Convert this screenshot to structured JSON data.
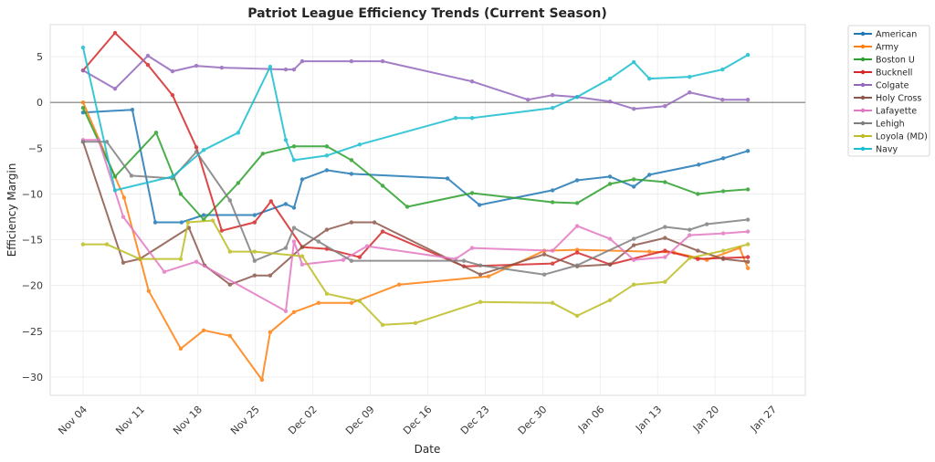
{
  "chart_data": {
    "type": "line",
    "title": "Patriot League Efficiency Trends (Current Season)",
    "xlabel": "Date",
    "ylabel": "Efficiency Margin",
    "x_unit": "days since Nov 04",
    "xlim": [
      -4,
      88
    ],
    "ylim": [
      -32,
      8.5
    ],
    "xticks": [
      {
        "day": 0,
        "label": "Nov 04"
      },
      {
        "day": 7,
        "label": "Nov 11"
      },
      {
        "day": 14,
        "label": "Nov 18"
      },
      {
        "day": 21,
        "label": "Nov 25"
      },
      {
        "day": 28,
        "label": "Dec 02"
      },
      {
        "day": 35,
        "label": "Dec 09"
      },
      {
        "day": 42,
        "label": "Dec 16"
      },
      {
        "day": 49,
        "label": "Dec 23"
      },
      {
        "day": 56,
        "label": "Dec 30"
      },
      {
        "day": 63,
        "label": "Jan 06"
      },
      {
        "day": 70,
        "label": "Jan 13"
      },
      {
        "day": 77,
        "label": "Jan 20"
      },
      {
        "day": 84,
        "label": "Jan 27"
      }
    ],
    "yticks": [
      5,
      0,
      -5,
      -10,
      -15,
      -20,
      -25,
      -30
    ],
    "ytick_labels": [
      "5",
      "0",
      "−5",
      "−10",
      "−15",
      "−20",
      "−25",
      "−30"
    ],
    "reference_line": 0,
    "grid": true,
    "legend_position": "outside-top-right",
    "series": [
      {
        "name": "American",
        "color": "#1f77b4",
        "points": [
          [
            0,
            -1.1
          ],
          [
            6,
            -0.8
          ],
          [
            8.8,
            -13.1
          ],
          [
            12,
            -13.1
          ],
          [
            14.7,
            -12.3
          ],
          [
            20.9,
            -12.3
          ],
          [
            24.7,
            -11.1
          ],
          [
            25.7,
            -11.5
          ],
          [
            26.7,
            -8.4
          ],
          [
            29.7,
            -7.4
          ],
          [
            32.7,
            -7.8
          ],
          [
            44.4,
            -8.3
          ],
          [
            48.3,
            -11.2
          ],
          [
            57.2,
            -9.6
          ],
          [
            60.2,
            -8.5
          ],
          [
            64.2,
            -8.1
          ],
          [
            67.1,
            -9.2
          ],
          [
            69,
            -7.9
          ],
          [
            75,
            -6.8
          ],
          [
            78,
            -6.1
          ],
          [
            81,
            -5.3
          ]
        ]
      },
      {
        "name": "Army",
        "color": "#ff7f0e",
        "points": [
          [
            0,
            0
          ],
          [
            5,
            -10.4
          ],
          [
            8,
            -20.6
          ],
          [
            11.9,
            -26.9
          ],
          [
            14.7,
            -24.9
          ],
          [
            17.9,
            -25.5
          ],
          [
            21.8,
            -30.3
          ],
          [
            22.8,
            -25.1
          ],
          [
            25.7,
            -22.9
          ],
          [
            28.7,
            -21.9
          ],
          [
            32.7,
            -21.9
          ],
          [
            38.5,
            -19.9
          ],
          [
            49.4,
            -19
          ],
          [
            56.2,
            -16.2
          ],
          [
            60.2,
            -16.1
          ],
          [
            69,
            -16.3
          ],
          [
            72,
            -16.4
          ],
          [
            76,
            -17.2
          ],
          [
            80,
            -15.9
          ],
          [
            81,
            -18.1
          ]
        ]
      },
      {
        "name": "Boston U",
        "color": "#2ca02c",
        "points": [
          [
            0,
            -0.6
          ],
          [
            3.9,
            -8.1
          ],
          [
            8.9,
            -3.3
          ],
          [
            11.9,
            -10
          ],
          [
            14.7,
            -12.8
          ],
          [
            18.9,
            -8.8
          ],
          [
            21.9,
            -5.6
          ],
          [
            25.7,
            -4.8
          ],
          [
            29.7,
            -4.8
          ],
          [
            32.7,
            -6.3
          ],
          [
            36.5,
            -9.1
          ],
          [
            39.5,
            -11.4
          ],
          [
            47.4,
            -9.9
          ],
          [
            57.2,
            -10.9
          ],
          [
            60.2,
            -11
          ],
          [
            64.2,
            -8.9
          ],
          [
            67.1,
            -8.4
          ],
          [
            70.9,
            -8.7
          ],
          [
            74.9,
            -10
          ],
          [
            78,
            -9.7
          ],
          [
            81,
            -9.5
          ]
        ]
      },
      {
        "name": "Bucknell",
        "color": "#d62728",
        "points": [
          [
            0,
            3.5
          ],
          [
            3.9,
            7.6
          ],
          [
            7.9,
            4.1
          ],
          [
            10.9,
            0.8
          ],
          [
            13.8,
            -4.9
          ],
          [
            16.9,
            -14
          ],
          [
            20.9,
            -13.1
          ],
          [
            22.9,
            -10.8
          ],
          [
            26.7,
            -15.8
          ],
          [
            29.7,
            -16
          ],
          [
            33.7,
            -16.9
          ],
          [
            36.5,
            -14.1
          ],
          [
            46.4,
            -17.9
          ],
          [
            57.2,
            -17.6
          ],
          [
            60.2,
            -16.4
          ],
          [
            64.2,
            -17.7
          ],
          [
            70.9,
            -16.2
          ],
          [
            74.9,
            -17.1
          ],
          [
            78,
            -17
          ],
          [
            81,
            -16.9
          ]
        ]
      },
      {
        "name": "Colgate",
        "color": "#9467bd",
        "points": [
          [
            0,
            3.5
          ],
          [
            3.9,
            1.5
          ],
          [
            7.9,
            5.1
          ],
          [
            10.9,
            3.4
          ],
          [
            13.8,
            4
          ],
          [
            16.9,
            3.8
          ],
          [
            24.7,
            3.6
          ],
          [
            25.7,
            3.6
          ],
          [
            26.7,
            4.5
          ],
          [
            32.7,
            4.5
          ],
          [
            36.5,
            4.5
          ],
          [
            47.4,
            2.3
          ],
          [
            54.2,
            0.3
          ],
          [
            57.2,
            0.8
          ],
          [
            60.2,
            0.6
          ],
          [
            64.2,
            0.1
          ],
          [
            67.1,
            -0.7
          ],
          [
            70.9,
            -0.4
          ],
          [
            73.9,
            1.1
          ],
          [
            77.9,
            0.3
          ],
          [
            81,
            0.3
          ]
        ]
      },
      {
        "name": "Holy Cross",
        "color": "#8c564b",
        "points": [
          [
            0,
            -4.3
          ],
          [
            4.9,
            -17.5
          ],
          [
            6.9,
            -17.1
          ],
          [
            12.9,
            -13.7
          ],
          [
            14.8,
            -17.8
          ],
          [
            17.9,
            -19.9
          ],
          [
            20.9,
            -18.9
          ],
          [
            22.8,
            -18.9
          ],
          [
            26.7,
            -15.8
          ],
          [
            29.7,
            -13.9
          ],
          [
            32.7,
            -13.1
          ],
          [
            35.5,
            -13.1
          ],
          [
            48.4,
            -18.8
          ],
          [
            56.2,
            -16.6
          ],
          [
            60.2,
            -17.9
          ],
          [
            64.2,
            -17.7
          ],
          [
            67.1,
            -15.6
          ],
          [
            70.9,
            -14.8
          ],
          [
            74.9,
            -16.2
          ],
          [
            78,
            -17.1
          ],
          [
            81,
            -17.4
          ]
        ]
      },
      {
        "name": "Lafayette",
        "color": "#e377c2",
        "points": [
          [
            0,
            -4.1
          ],
          [
            1.9,
            -4.1
          ],
          [
            4.9,
            -12.5
          ],
          [
            9.9,
            -18.5
          ],
          [
            13.8,
            -17.4
          ],
          [
            24.7,
            -22.8
          ],
          [
            25.7,
            -15.2
          ],
          [
            26.7,
            -17.7
          ],
          [
            31.7,
            -17.2
          ],
          [
            34.6,
            -15.7
          ],
          [
            45.4,
            -17.1
          ],
          [
            47.4,
            -15.9
          ],
          [
            57.2,
            -16.2
          ],
          [
            60.2,
            -13.5
          ],
          [
            64.2,
            -14.9
          ],
          [
            67.1,
            -17.2
          ],
          [
            70.9,
            -16.9
          ],
          [
            73.9,
            -14.5
          ],
          [
            78,
            -14.3
          ],
          [
            81,
            -14.1
          ]
        ]
      },
      {
        "name": "Lehigh",
        "color": "#7f7f7f",
        "points": [
          [
            0,
            -4.3
          ],
          [
            2.9,
            -4.3
          ],
          [
            5.9,
            -8
          ],
          [
            10.9,
            -8.3
          ],
          [
            13.8,
            -5.4
          ],
          [
            17.9,
            -10.7
          ],
          [
            20.9,
            -17.3
          ],
          [
            24.7,
            -15.9
          ],
          [
            25.7,
            -13.7
          ],
          [
            28.7,
            -15.2
          ],
          [
            32.7,
            -17.3
          ],
          [
            46.4,
            -17.3
          ],
          [
            48.4,
            -17.8
          ],
          [
            56.2,
            -18.8
          ],
          [
            60.2,
            -17.8
          ],
          [
            67.1,
            -14.9
          ],
          [
            70.9,
            -13.6
          ],
          [
            73.9,
            -13.9
          ],
          [
            76,
            -13.3
          ],
          [
            81,
            -12.8
          ]
        ]
      },
      {
        "name": "Loyola (MD)",
        "color": "#bcbd22",
        "points": [
          [
            0,
            -15.5
          ],
          [
            2.9,
            -15.5
          ],
          [
            6.9,
            -17.1
          ],
          [
            11.9,
            -17.1
          ],
          [
            12.8,
            -13.1
          ],
          [
            15.8,
            -12.9
          ],
          [
            17.9,
            -16.3
          ],
          [
            20.9,
            -16.3
          ],
          [
            26.7,
            -16.8
          ],
          [
            29.7,
            -20.9
          ],
          [
            33.7,
            -21.7
          ],
          [
            36.5,
            -24.3
          ],
          [
            40.5,
            -24.1
          ],
          [
            48.4,
            -21.8
          ],
          [
            57.2,
            -21.9
          ],
          [
            60.2,
            -23.3
          ],
          [
            64.2,
            -21.6
          ],
          [
            67.1,
            -19.9
          ],
          [
            70.9,
            -19.6
          ],
          [
            73.9,
            -17
          ],
          [
            78,
            -16.2
          ],
          [
            81,
            -15.5
          ]
        ]
      },
      {
        "name": "Navy",
        "color": "#17becf",
        "points": [
          [
            0,
            6
          ],
          [
            3.9,
            -9.6
          ],
          [
            10.9,
            -8.1
          ],
          [
            14.7,
            -5.2
          ],
          [
            18.9,
            -3.3
          ],
          [
            22.8,
            3.9
          ],
          [
            24.7,
            -4.1
          ],
          [
            25.7,
            -6.3
          ],
          [
            29.7,
            -5.8
          ],
          [
            33.7,
            -4.6
          ],
          [
            45.4,
            -1.7
          ],
          [
            47.4,
            -1.7
          ],
          [
            57.2,
            -0.6
          ],
          [
            60.2,
            0.6
          ],
          [
            64.2,
            2.6
          ],
          [
            67.1,
            4.4
          ],
          [
            69,
            2.6
          ],
          [
            73.9,
            2.8
          ],
          [
            77.9,
            3.6
          ],
          [
            81,
            5.2
          ]
        ]
      }
    ]
  }
}
